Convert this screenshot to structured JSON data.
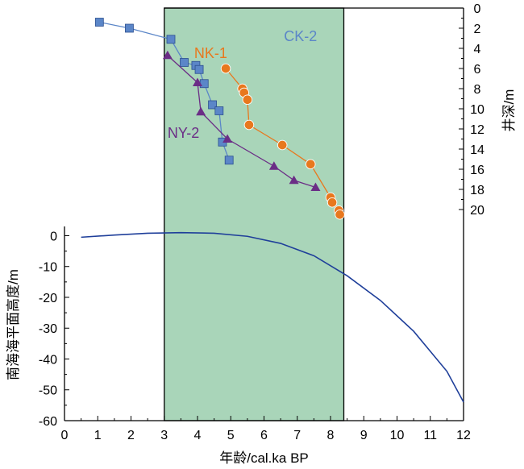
{
  "chart_data": [
    {
      "type": "scatter",
      "panel": "well-depth",
      "ylabel": "井深/m",
      "ylim": [
        0,
        21
      ],
      "yticks": [
        0,
        2,
        4,
        6,
        8,
        10,
        12,
        14,
        16,
        18,
        20
      ],
      "y_inverted": true,
      "y_axis_side": "right",
      "series": [
        {
          "name": "CK-2",
          "color": "#5b86c8",
          "label_color": "#5b86c8",
          "marker": "square",
          "points": [
            {
              "x": 1.05,
              "y": 1.4
            },
            {
              "x": 1.95,
              "y": 2.0
            },
            {
              "x": 3.2,
              "y": 3.1
            },
            {
              "x": 3.6,
              "y": 5.4
            },
            {
              "x": 3.95,
              "y": 5.7
            },
            {
              "x": 4.05,
              "y": 6.1
            },
            {
              "x": 4.2,
              "y": 7.5
            },
            {
              "x": 4.45,
              "y": 9.6
            },
            {
              "x": 4.65,
              "y": 10.2
            },
            {
              "x": 4.75,
              "y": 13.3
            },
            {
              "x": 4.95,
              "y": 15.1
            }
          ]
        },
        {
          "name": "NK-1",
          "color": "#e8781e",
          "label_color": "#e8781e",
          "marker": "circle",
          "points": [
            {
              "x": 4.85,
              "y": 6.0
            },
            {
              "x": 5.35,
              "y": 8.0
            },
            {
              "x": 5.4,
              "y": 8.4
            },
            {
              "x": 5.5,
              "y": 9.1
            },
            {
              "x": 5.55,
              "y": 11.6
            },
            {
              "x": 6.55,
              "y": 13.6
            },
            {
              "x": 7.4,
              "y": 15.5
            },
            {
              "x": 8.0,
              "y": 18.8
            },
            {
              "x": 8.05,
              "y": 19.3
            },
            {
              "x": 8.25,
              "y": 20.1
            },
            {
              "x": 8.28,
              "y": 20.5
            }
          ]
        },
        {
          "name": "NY-2",
          "color": "#6b2d86",
          "label_color": "#6b2d86",
          "marker": "triangle",
          "points": [
            {
              "x": 3.1,
              "y": 4.7
            },
            {
              "x": 4.0,
              "y": 7.4
            },
            {
              "x": 4.1,
              "y": 10.3
            },
            {
              "x": 4.9,
              "y": 13.0
            },
            {
              "x": 6.3,
              "y": 15.7
            },
            {
              "x": 6.9,
              "y": 17.1
            },
            {
              "x": 7.55,
              "y": 17.8
            }
          ]
        }
      ]
    },
    {
      "type": "line",
      "panel": "sea-level",
      "xlabel": "年龄/cal.ka BP",
      "ylabel": "南海海平面高度/m",
      "xlim": [
        0,
        12
      ],
      "xticks": [
        0,
        1,
        2,
        3,
        4,
        5,
        6,
        7,
        8,
        9,
        10,
        11,
        12
      ],
      "ylim": [
        -60,
        3
      ],
      "yticks": [
        0,
        -10,
        -20,
        -30,
        -40,
        -50,
        -60
      ],
      "series": [
        {
          "color": "#1f3f9a",
          "points": [
            {
              "x": 0.5,
              "y": -0.5
            },
            {
              "x": 1.5,
              "y": 0.2
            },
            {
              "x": 2.5,
              "y": 0.8
            },
            {
              "x": 3.5,
              "y": 1.0
            },
            {
              "x": 4.5,
              "y": 0.8
            },
            {
              "x": 5.5,
              "y": -0.2
            },
            {
              "x": 6.5,
              "y": -2.5
            },
            {
              "x": 7.5,
              "y": -6.5
            },
            {
              "x": 8.5,
              "y": -13.0
            },
            {
              "x": 9.5,
              "y": -21.0
            },
            {
              "x": 10.5,
              "y": -31.0
            },
            {
              "x": 11.5,
              "y": -44.0
            },
            {
              "x": 12.0,
              "y": -54.0
            }
          ]
        }
      ]
    }
  ],
  "highlight_band": {
    "from": 3.0,
    "to": 8.4,
    "color": "#a9d5b9"
  }
}
